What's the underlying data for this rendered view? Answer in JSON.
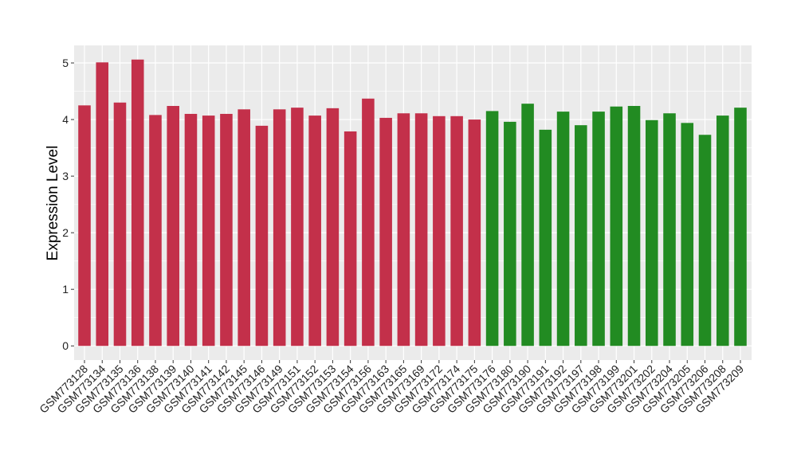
{
  "chart_data": {
    "type": "bar",
    "title": "",
    "xlabel": "",
    "ylabel": "Expression Level",
    "ylim": [
      -0.25,
      5.31
    ],
    "yticks": [
      0,
      1,
      2,
      3,
      4,
      5
    ],
    "grid": true,
    "legend": "none",
    "colors": {
      "group1": "#C3304A",
      "group2": "#228B22",
      "panel": "#EBEBEB",
      "grid": "#FFFFFF"
    },
    "categories": [
      "GSM773128",
      "GSM773134",
      "GSM773135",
      "GSM773136",
      "GSM773138",
      "GSM773139",
      "GSM773140",
      "GSM773141",
      "GSM773142",
      "GSM773145",
      "GSM773146",
      "GSM773149",
      "GSM773151",
      "GSM773152",
      "GSM773153",
      "GSM773154",
      "GSM773156",
      "GSM773163",
      "GSM773165",
      "GSM773169",
      "GSM773172",
      "GSM773174",
      "GSM773175",
      "GSM773176",
      "GSM773180",
      "GSM773190",
      "GSM773191",
      "GSM773192",
      "GSM773197",
      "GSM773198",
      "GSM773199",
      "GSM773201",
      "GSM773202",
      "GSM773204",
      "GSM773205",
      "GSM773206",
      "GSM773208",
      "GSM773209"
    ],
    "values": [
      4.25,
      5.01,
      4.3,
      5.06,
      4.08,
      4.24,
      4.1,
      4.07,
      4.1,
      4.18,
      3.89,
      4.18,
      4.21,
      4.07,
      4.2,
      3.79,
      4.37,
      4.03,
      4.11,
      4.11,
      4.06,
      4.06,
      4.0,
      4.15,
      3.96,
      4.28,
      3.82,
      4.14,
      3.9,
      4.14,
      4.23,
      4.24,
      3.99,
      4.11,
      3.94,
      3.73,
      4.07,
      4.21
    ],
    "groups": [
      "group1",
      "group1",
      "group1",
      "group1",
      "group1",
      "group1",
      "group1",
      "group1",
      "group1",
      "group1",
      "group1",
      "group1",
      "group1",
      "group1",
      "group1",
      "group1",
      "group1",
      "group1",
      "group1",
      "group1",
      "group1",
      "group1",
      "group1",
      "group2",
      "group2",
      "group2",
      "group2",
      "group2",
      "group2",
      "group2",
      "group2",
      "group2",
      "group2",
      "group2",
      "group2",
      "group2",
      "group2",
      "group2"
    ]
  }
}
